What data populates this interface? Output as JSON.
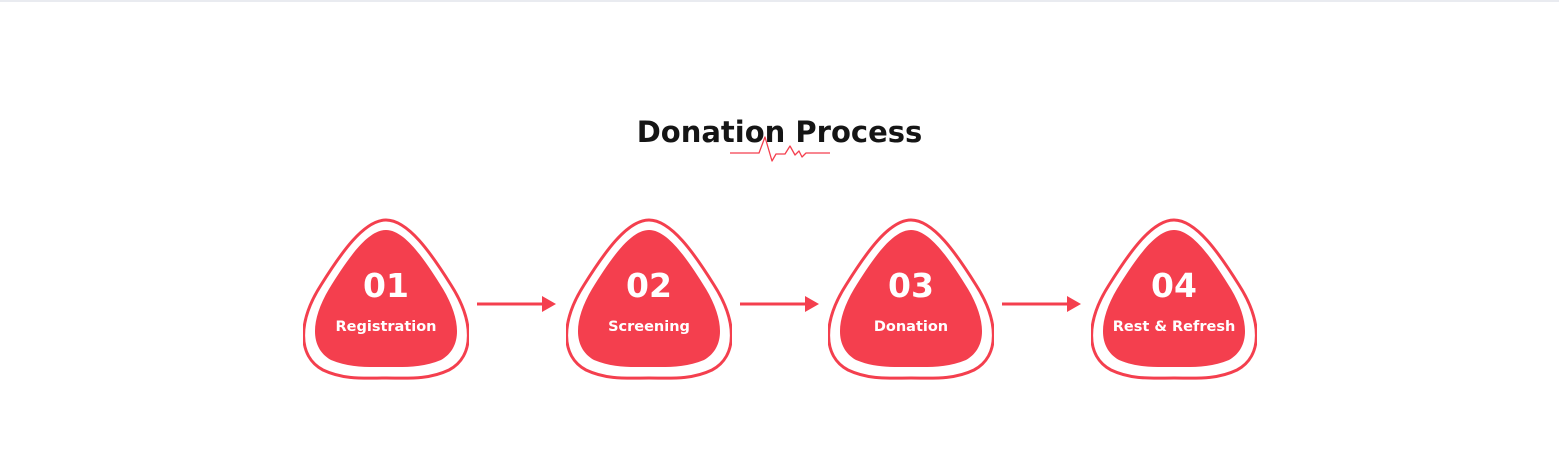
{
  "section": {
    "title": "Donation Process",
    "divider_icon": "heartbeat-pulse-icon"
  },
  "steps": [
    {
      "number": "01",
      "label": "Registration"
    },
    {
      "number": "02",
      "label": "Screening"
    },
    {
      "number": "03",
      "label": "Donation"
    },
    {
      "number": "04",
      "label": "Rest & Refresh"
    }
  ],
  "connectors": [
    {
      "icon": "arrow-right-icon"
    },
    {
      "icon": "arrow-right-icon"
    },
    {
      "icon": "arrow-right-icon"
    }
  ],
  "colors": {
    "accent": "#f43f4e",
    "title": "#151515",
    "background": "#ffffff"
  }
}
